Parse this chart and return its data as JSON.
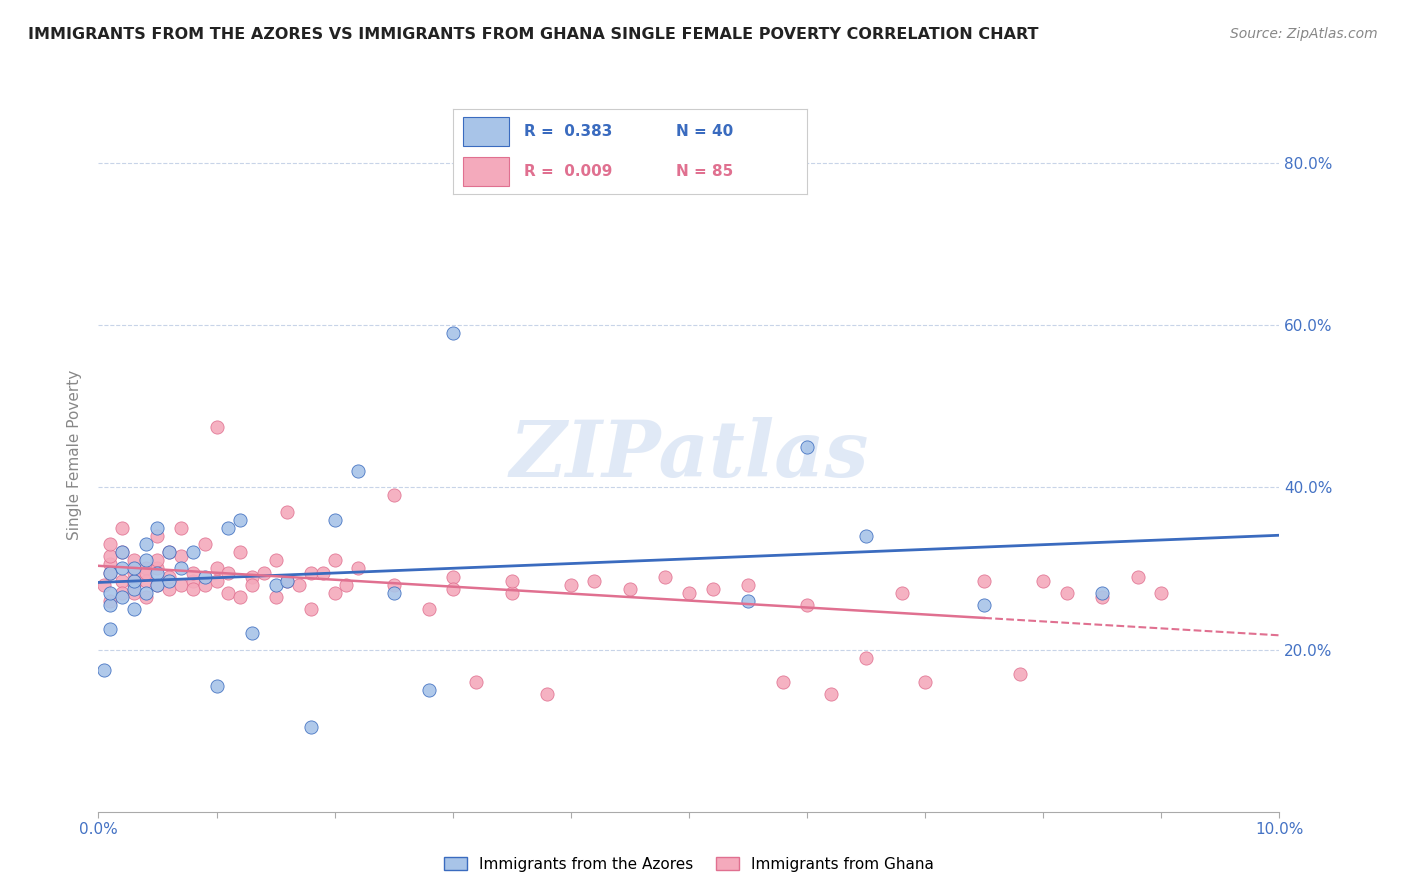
{
  "title": "IMMIGRANTS FROM THE AZORES VS IMMIGRANTS FROM GHANA SINGLE FEMALE POVERTY CORRELATION CHART",
  "source": "Source: ZipAtlas.com",
  "ylabel": "Single Female Poverty",
  "right_yticklabels": [
    "20.0%",
    "40.0%",
    "60.0%",
    "80.0%"
  ],
  "right_ytick_vals": [
    0.2,
    0.4,
    0.6,
    0.8
  ],
  "legend1_label": "Immigrants from the Azores",
  "legend2_label": "Immigrants from Ghana",
  "r1": 0.383,
  "n1": 40,
  "r2": 0.009,
  "n2": 85,
  "color_azores": "#a8c4e8",
  "color_ghana": "#f4aabc",
  "trendline_azores": "#3a6bbf",
  "trendline_ghana": "#e07090",
  "watermark": "ZIPatlas",
  "xlim": [
    0,
    0.1
  ],
  "ylim": [
    0.0,
    0.88
  ],
  "azores_x": [
    0.0005,
    0.001,
    0.001,
    0.001,
    0.001,
    0.002,
    0.002,
    0.002,
    0.003,
    0.003,
    0.003,
    0.003,
    0.004,
    0.004,
    0.004,
    0.005,
    0.005,
    0.005,
    0.006,
    0.006,
    0.007,
    0.008,
    0.009,
    0.01,
    0.011,
    0.012,
    0.013,
    0.015,
    0.016,
    0.018,
    0.02,
    0.022,
    0.025,
    0.028,
    0.03,
    0.055,
    0.06,
    0.065,
    0.075,
    0.085
  ],
  "azores_y": [
    0.175,
    0.255,
    0.225,
    0.27,
    0.295,
    0.265,
    0.3,
    0.32,
    0.25,
    0.275,
    0.285,
    0.3,
    0.27,
    0.31,
    0.33,
    0.28,
    0.295,
    0.35,
    0.285,
    0.32,
    0.3,
    0.32,
    0.29,
    0.155,
    0.35,
    0.36,
    0.22,
    0.28,
    0.285,
    0.105,
    0.36,
    0.42,
    0.27,
    0.15,
    0.59,
    0.26,
    0.45,
    0.34,
    0.255,
    0.27
  ],
  "ghana_x": [
    0.0005,
    0.001,
    0.001,
    0.001,
    0.001,
    0.001,
    0.002,
    0.002,
    0.002,
    0.002,
    0.003,
    0.003,
    0.003,
    0.003,
    0.003,
    0.004,
    0.004,
    0.004,
    0.004,
    0.005,
    0.005,
    0.005,
    0.005,
    0.006,
    0.006,
    0.006,
    0.007,
    0.007,
    0.007,
    0.008,
    0.008,
    0.008,
    0.009,
    0.009,
    0.01,
    0.01,
    0.01,
    0.011,
    0.011,
    0.012,
    0.012,
    0.013,
    0.013,
    0.014,
    0.015,
    0.015,
    0.016,
    0.016,
    0.017,
    0.018,
    0.018,
    0.019,
    0.02,
    0.02,
    0.021,
    0.022,
    0.025,
    0.025,
    0.028,
    0.03,
    0.03,
    0.032,
    0.035,
    0.035,
    0.038,
    0.04,
    0.042,
    0.045,
    0.048,
    0.05,
    0.052,
    0.055,
    0.058,
    0.06,
    0.062,
    0.065,
    0.068,
    0.07,
    0.075,
    0.078,
    0.08,
    0.082,
    0.085,
    0.088,
    0.09
  ],
  "ghana_y": [
    0.28,
    0.305,
    0.315,
    0.33,
    0.26,
    0.295,
    0.285,
    0.32,
    0.27,
    0.35,
    0.31,
    0.295,
    0.28,
    0.27,
    0.285,
    0.3,
    0.265,
    0.285,
    0.295,
    0.28,
    0.34,
    0.3,
    0.31,
    0.275,
    0.29,
    0.32,
    0.28,
    0.35,
    0.315,
    0.285,
    0.295,
    0.275,
    0.28,
    0.33,
    0.285,
    0.3,
    0.475,
    0.27,
    0.295,
    0.265,
    0.32,
    0.29,
    0.28,
    0.295,
    0.265,
    0.31,
    0.285,
    0.37,
    0.28,
    0.295,
    0.25,
    0.295,
    0.27,
    0.31,
    0.28,
    0.3,
    0.28,
    0.39,
    0.25,
    0.29,
    0.275,
    0.16,
    0.27,
    0.285,
    0.145,
    0.28,
    0.285,
    0.275,
    0.29,
    0.27,
    0.275,
    0.28,
    0.16,
    0.255,
    0.145,
    0.19,
    0.27,
    0.16,
    0.285,
    0.17,
    0.285,
    0.27,
    0.265,
    0.29,
    0.27
  ]
}
